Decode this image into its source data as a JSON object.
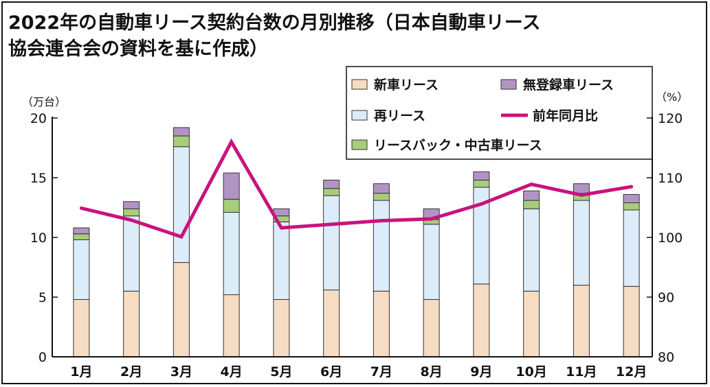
{
  "title_line1": "2022年の自動車リース契約台数の月別推移（日本自動車リース",
  "title_line2": "協会連合会の資料を基に作成）",
  "colors": {
    "new_lease": "#f5dcc3",
    "re_lease": "#dcecf8",
    "leaseback": "#a8cd7a",
    "unregistered": "#b294c4",
    "yoy": "#c8137e",
    "outline": "#333333"
  },
  "chart_data": {
    "type": "bar",
    "categories": [
      "1月",
      "2月",
      "3月",
      "4月",
      "5月",
      "6月",
      "7月",
      "8月",
      "9月",
      "10月",
      "11月",
      "12月"
    ],
    "series": [
      {
        "name": "新車リース",
        "values": [
          4.8,
          5.5,
          7.9,
          5.2,
          4.8,
          5.6,
          5.5,
          4.8,
          6.1,
          5.5,
          6.0,
          5.9
        ]
      },
      {
        "name": "再リース",
        "values": [
          5.0,
          6.3,
          9.7,
          6.9,
          6.5,
          7.9,
          7.6,
          6.3,
          8.1,
          6.9,
          7.1,
          6.4
        ]
      },
      {
        "name": "リースバック・中古車リース",
        "values": [
          0.5,
          0.6,
          0.9,
          1.1,
          0.5,
          0.6,
          0.6,
          0.4,
          0.6,
          0.7,
          0.6,
          0.6
        ]
      },
      {
        "name": "無登録車リース",
        "values": [
          0.5,
          0.6,
          0.7,
          2.2,
          0.6,
          0.7,
          0.8,
          0.9,
          0.7,
          0.8,
          0.8,
          0.7
        ]
      },
      {
        "name": "前年同月比",
        "type": "line",
        "axis": "right",
        "values": [
          104.9,
          102.9,
          100.1,
          116.0,
          101.6,
          102.2,
          102.8,
          103.1,
          105.6,
          108.9,
          107.1,
          108.5
        ]
      }
    ],
    "yaxis_left": {
      "unit": "（万台）",
      "range": [
        0,
        20
      ],
      "ticks": [
        0,
        5,
        10,
        15,
        20
      ]
    },
    "yaxis_right": {
      "unit": "（%）",
      "range": [
        80,
        120
      ],
      "ticks": [
        80,
        90,
        100,
        110,
        120
      ]
    },
    "legend": {
      "position": "top-right",
      "entries": [
        "新車リース",
        "無登録車リース",
        "再リース",
        "前年同月比",
        "リースバック・中古車リース"
      ]
    },
    "grid": false
  }
}
